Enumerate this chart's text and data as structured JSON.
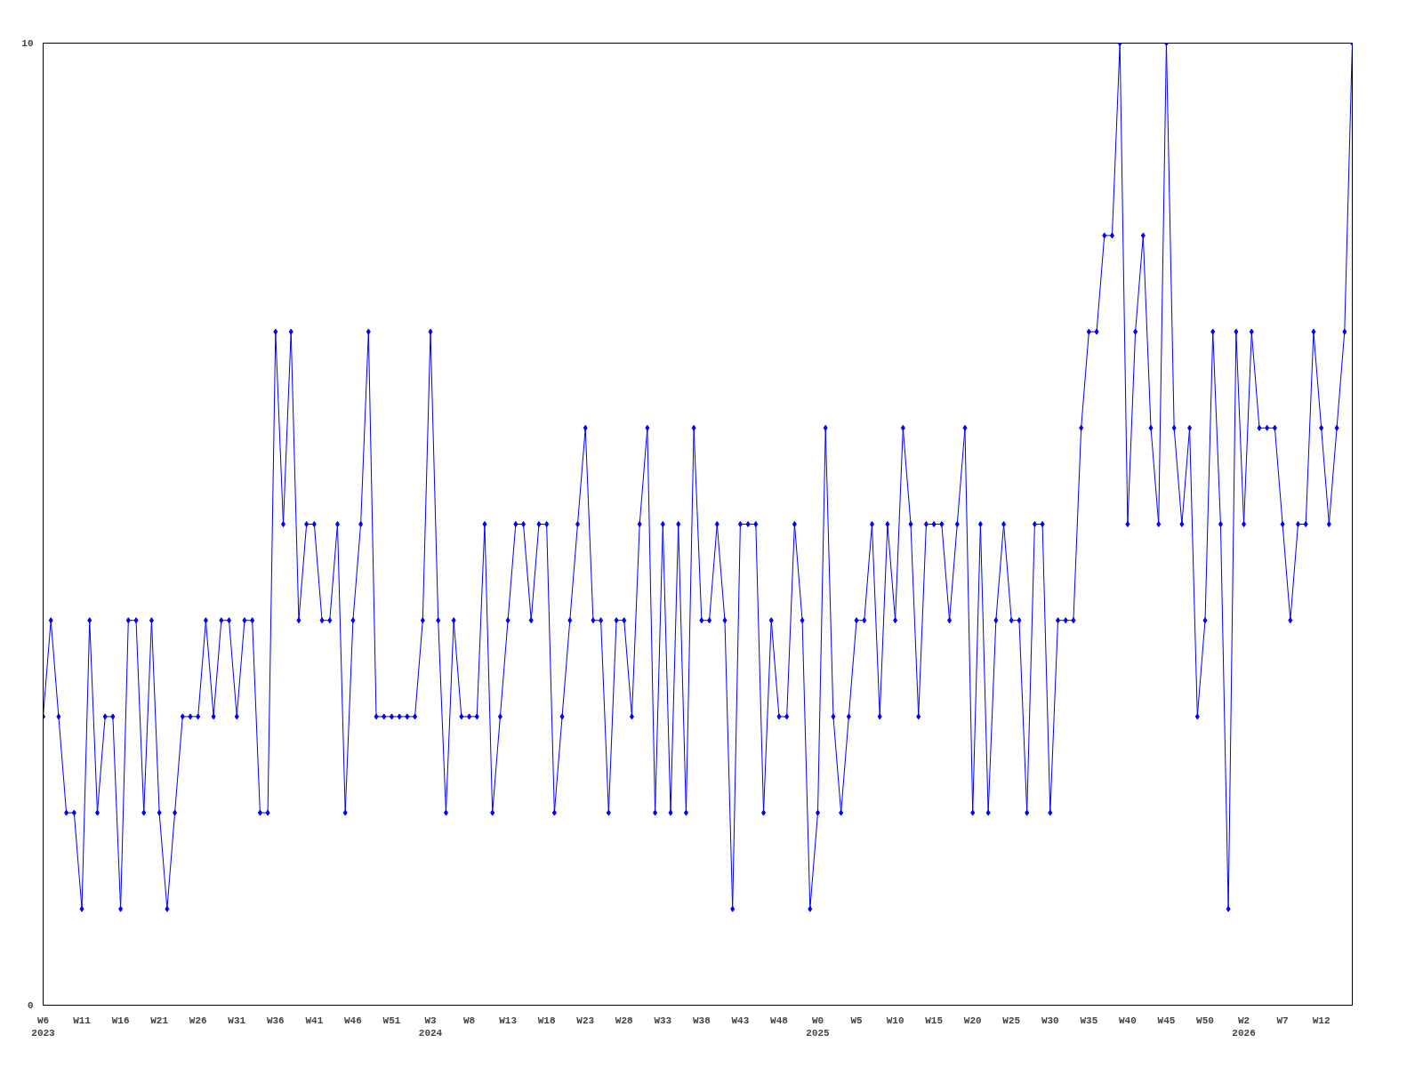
{
  "chart_data": {
    "type": "line",
    "categories": [
      "W6\n2023",
      null,
      null,
      null,
      null,
      "W11",
      null,
      null,
      null,
      null,
      "W16",
      null,
      null,
      null,
      null,
      "W21",
      null,
      null,
      null,
      null,
      "W26",
      null,
      null,
      null,
      null,
      "W31",
      null,
      null,
      null,
      null,
      "W36",
      null,
      null,
      null,
      null,
      "W41",
      null,
      null,
      null,
      null,
      "W46",
      null,
      null,
      null,
      null,
      "W51",
      null,
      null,
      null,
      null,
      "W3\n2024",
      null,
      null,
      null,
      null,
      "W8",
      null,
      null,
      null,
      null,
      "W13",
      null,
      null,
      null,
      null,
      "W18",
      null,
      null,
      null,
      null,
      "W23",
      null,
      null,
      null,
      null,
      "W28",
      null,
      null,
      null,
      null,
      "W33",
      null,
      null,
      null,
      null,
      "W38",
      null,
      null,
      null,
      null,
      "W43",
      null,
      null,
      null,
      null,
      "W48",
      null,
      null,
      null,
      null,
      "W0\n2025",
      null,
      null,
      null,
      null,
      "W5",
      null,
      null,
      null,
      null,
      "W10",
      null,
      null,
      null,
      null,
      "W15",
      null,
      null,
      null,
      null,
      "W20",
      null,
      null,
      null,
      null,
      "W25",
      null,
      null,
      null,
      null,
      "W30",
      null,
      null,
      null,
      null,
      "W35",
      null,
      null,
      null,
      null,
      "W40",
      null,
      null,
      null,
      null,
      "W45",
      null,
      null,
      null,
      null,
      "W50",
      null,
      null,
      null,
      null,
      "W2\n2026",
      null,
      null,
      null,
      null,
      "W7",
      null,
      null,
      null,
      null,
      "W12",
      null,
      null,
      null,
      null
    ],
    "series": [
      {
        "color": "#0000ff",
        "values": [
          3,
          4,
          3,
          2,
          2,
          1,
          4,
          2,
          3,
          3,
          1,
          4,
          4,
          2,
          4,
          2,
          1,
          2,
          3,
          3,
          3,
          4,
          3,
          4,
          4,
          3,
          4,
          4,
          2,
          2,
          7,
          5,
          7,
          4,
          5,
          5,
          4,
          4,
          5,
          2,
          4,
          5,
          7,
          3,
          3,
          3,
          3,
          3,
          3,
          4,
          7,
          4,
          2,
          4,
          3,
          3,
          3,
          5,
          2,
          3,
          4,
          5,
          5,
          4,
          5,
          5,
          2,
          3,
          4,
          5,
          6,
          4,
          4,
          2,
          4,
          4,
          3,
          5,
          6,
          2,
          5,
          2,
          5,
          2,
          6,
          4,
          4,
          5,
          4,
          1,
          5,
          5,
          5,
          2,
          4,
          3,
          3,
          5,
          4,
          1,
          2,
          6,
          3,
          2,
          3,
          4,
          4,
          5,
          3,
          5,
          4,
          6,
          5,
          3,
          5,
          5,
          5,
          4,
          5,
          6,
          2,
          5,
          2,
          4,
          5,
          4,
          4,
          2,
          5,
          5,
          2,
          4,
          4,
          4,
          6,
          7,
          7,
          8,
          8,
          10,
          5,
          7,
          8,
          6,
          5,
          10,
          6,
          5,
          6,
          3,
          4,
          7,
          5,
          1,
          7,
          5,
          7,
          6,
          6,
          6,
          5,
          4,
          5,
          5,
          7,
          6,
          5,
          6,
          7,
          10
        ]
      }
    ],
    "ylim": [
      0,
      10
    ],
    "yticks": [
      0,
      10
    ],
    "grid": false,
    "marker": "diamond",
    "line_style": "solid"
  }
}
